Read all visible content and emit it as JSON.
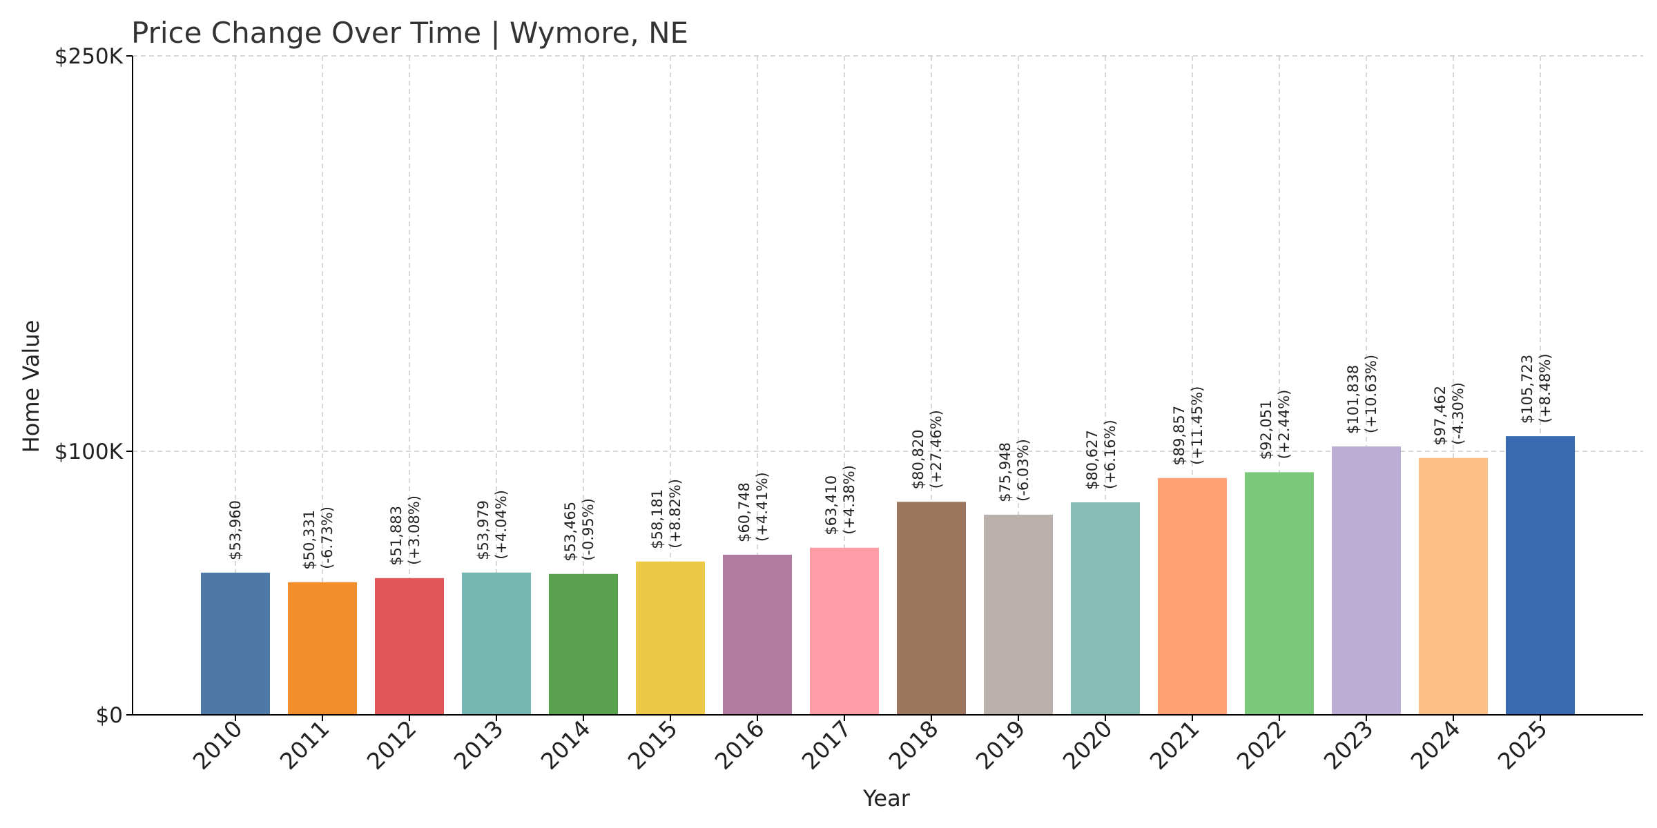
{
  "chart_data": {
    "type": "bar",
    "title": "Price Change Over Time | Wymore, NE",
    "xlabel": "Year",
    "ylabel": "Home Value",
    "ylim": [
      0,
      250000
    ],
    "y_ticks": [
      {
        "value": 0,
        "label": "$0"
      },
      {
        "value": 100000,
        "label": "$100K"
      },
      {
        "value": 250000,
        "label": "$250K"
      }
    ],
    "grid": true,
    "categories": [
      "2010",
      "2011",
      "2012",
      "2013",
      "2014",
      "2015",
      "2016",
      "2017",
      "2018",
      "2019",
      "2020",
      "2021",
      "2022",
      "2023",
      "2024",
      "2025"
    ],
    "values": [
      53960,
      50331,
      51883,
      53979,
      53465,
      58181,
      60748,
      63410,
      80820,
      75948,
      80627,
      89857,
      92051,
      101838,
      97462,
      105723
    ],
    "value_labels": [
      "$53,960",
      "$50,331",
      "$51,883",
      "$53,979",
      "$53,465",
      "$58,181",
      "$60,748",
      "$63,410",
      "$80,820",
      "$75,948",
      "$80,627",
      "$89,857",
      "$92,051",
      "$101,838",
      "$97,462",
      "$105,723"
    ],
    "change_labels": [
      "",
      "(-6.73%)",
      "(+3.08%)",
      "(+4.04%)",
      "(-0.95%)",
      "(+8.82%)",
      "(+4.41%)",
      "(+4.38%)",
      "(+27.46%)",
      "(-6.03%)",
      "(+6.16%)",
      "(+11.45%)",
      "(+2.44%)",
      "(+10.63%)",
      "(-4.30%)",
      "(+8.48%)"
    ],
    "colors": [
      "#4e79a7",
      "#f28e2b",
      "#e15759",
      "#76b7b2",
      "#59a14f",
      "#edc948",
      "#b07aa1",
      "#ff9da7",
      "#9c755f",
      "#bab0ac",
      "#86bcb6",
      "#ffa173",
      "#7bc87a",
      "#bcadd4",
      "#fcbf85",
      "#3a6bb0"
    ]
  }
}
